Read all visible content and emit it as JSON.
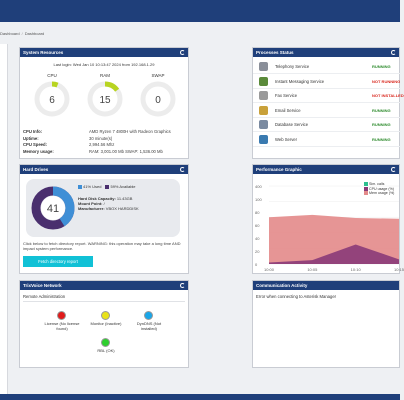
{
  "breadcrumb": {
    "items": [
      "Dashboard",
      "Dashboard"
    ]
  },
  "colors": {
    "topbar": "#1f3f7a",
    "running": "#2e8b2e",
    "not_running": "#d9261c",
    "not_installed": "#d9261c",
    "accent": "#11c1d6"
  },
  "system": {
    "title": "System Resources",
    "last_login": "Last login: Wed Jan 10 10:13:47 2024 from 192.168.1.29",
    "gauges": [
      {
        "label": "CPU",
        "value": "6",
        "percent": 6
      },
      {
        "label": "RAM",
        "value": "15",
        "percent": 15
      },
      {
        "label": "SWAP",
        "value": "0",
        "percent": 0
      }
    ],
    "info": [
      {
        "key": "CPU Info:",
        "value": "AMD Ryzen 7 4800H with Radeon Graphics"
      },
      {
        "key": "Uptime:",
        "value": "30 minute(s)"
      },
      {
        "key": "CPU Speed:",
        "value": "2,994.56 Mhz"
      },
      {
        "key": "Memory usage:",
        "value": "RAM: 3,001.00 Mb  SWAP: 1,536.00 Mb"
      }
    ]
  },
  "hard_drives": {
    "title": "Hard Drives",
    "used_percent": 41,
    "center_value": "41",
    "legend_used": "41% Used",
    "legend_available": "59% Available",
    "capacity_label": "Hard Disk Capacity:",
    "capacity_value": "11.43GB",
    "mount_label": "Mount Point:",
    "mount_value": "/",
    "manufacturer_label": "Manufacturer:",
    "manufacturer_value": "VBOX HARDDISK",
    "note": "Click below to fetch directory report. WARNING: this operation may take a long time AND impact system performance.",
    "button": "Fetch directory report"
  },
  "trixvoice": {
    "title": "TrixVoice Network",
    "subtitle": "Remote Administration",
    "items": [
      {
        "label": "License (No license found)",
        "color": "#e01b1b"
      },
      {
        "label": "Monitor (Inactive)",
        "color": "#e8e21a"
      },
      {
        "label": "DynDNS (Not installed)",
        "color": "#1aa6e8"
      },
      {
        "label": "RBL (OK)",
        "color": "#2fcf2f"
      }
    ]
  },
  "processes": {
    "title": "Processes Status",
    "items": [
      {
        "name": "Telephony Service",
        "status": "RUNNING",
        "icon": "telephone-icon",
        "icon_color": "#8a8f99"
      },
      {
        "name": "Instant Messaging Service",
        "status": "NOT RUNNING",
        "icon": "chat-icon",
        "icon_color": "#5a8a3a"
      },
      {
        "name": "Fax Service",
        "status": "NOT INSTALLED",
        "icon": "fax-icon",
        "icon_color": "#9a9a9a"
      },
      {
        "name": "Email Service",
        "status": "RUNNING",
        "icon": "email-icon",
        "icon_color": "#c9a13a"
      },
      {
        "name": "Database Service",
        "status": "RUNNING",
        "icon": "database-icon",
        "icon_color": "#7a8aa0"
      },
      {
        "name": "Web Server",
        "status": "RUNNING",
        "icon": "web-server-icon",
        "icon_color": "#3a7ab0"
      }
    ]
  },
  "performance": {
    "title": "Performance Graphic",
    "legend": [
      "Sim. calls",
      "CPU usage (%)",
      "Mem usage (%)"
    ],
    "y_ticks": [
      "400",
      "100",
      "80",
      "60",
      "40",
      "20",
      "0"
    ],
    "x_ticks": [
      "10:00",
      "10:05",
      "10:10",
      "10:15"
    ]
  },
  "chart_data": {
    "type": "area",
    "x": [
      "10:00",
      "10:05",
      "10:10",
      "10:15"
    ],
    "series": [
      {
        "name": "Mem usage (%)",
        "values": [
          60,
          63,
          59,
          58
        ]
      },
      {
        "name": "CPU usage (%)",
        "values": [
          2,
          5,
          25,
          6
        ]
      },
      {
        "name": "Sim. calls",
        "values": [
          0,
          0,
          0,
          0
        ]
      }
    ]
  },
  "communication": {
    "title": "Communication Activity",
    "message": "Error when connecting to Asterisk Manager"
  }
}
